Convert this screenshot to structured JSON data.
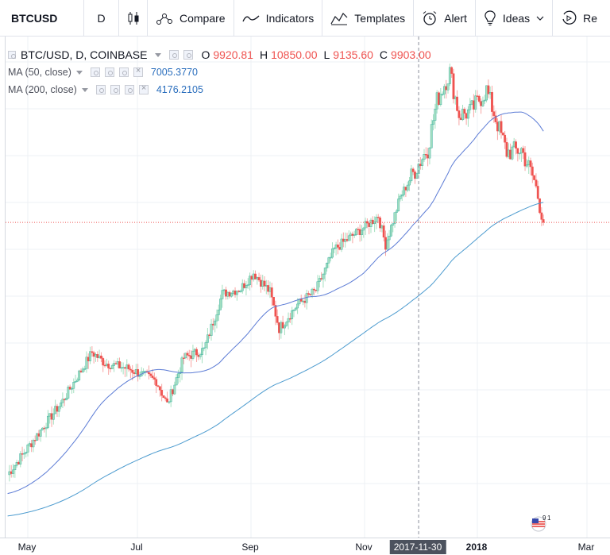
{
  "toolbar": {
    "symbol": "BTCUSD",
    "interval": "D",
    "compare": "Compare",
    "indicators": "Indicators",
    "templates": "Templates",
    "alert": "Alert",
    "ideas": "Ideas",
    "replay": "Re"
  },
  "legend": {
    "symbol": "BTC/USD, D, COINBASE",
    "o_key": "O",
    "o_val": "9920.81",
    "h_key": "H",
    "h_val": "10850.00",
    "l_key": "L",
    "l_val": "9135.60",
    "c_key": "C",
    "c_val": "9903.00",
    "ma50_label": "MA (50, close)",
    "ma50_val": "7005.3770",
    "ma200_label": "MA (200, close)",
    "ma200_val": "4176.2105"
  },
  "time_axis": {
    "labels": [
      "May",
      "Jul",
      "Sep",
      "Nov",
      "2018",
      "Mar"
    ],
    "cursor_date": "2017-11-30"
  },
  "colors": {
    "up": "#26a69a",
    "up_fill": "#a5e0c0",
    "down": "#ef5350",
    "ma50": "#5b7bd5",
    "ma200": "#4c9bcf",
    "last_price_line": "#ef5350"
  },
  "chart_data": {
    "type": "candlestick",
    "symbol": "BTC/USD",
    "exchange": "COINBASE",
    "interval": "D",
    "last": {
      "open": 9920.81,
      "high": 10850.0,
      "low": 9135.6,
      "close": 9903.0
    },
    "x": [
      "2017-04-20",
      "2017-05-05",
      "2017-05-20",
      "2017-06-05",
      "2017-06-12",
      "2017-06-25",
      "2017-07-10",
      "2017-07-16",
      "2017-07-25",
      "2017-08-05",
      "2017-08-15",
      "2017-08-25",
      "2017-09-01",
      "2017-09-10",
      "2017-09-15",
      "2017-09-25",
      "2017-10-05",
      "2017-10-15",
      "2017-10-20",
      "2017-11-01",
      "2017-11-08",
      "2017-11-12",
      "2017-11-20",
      "2017-11-28",
      "2017-12-05",
      "2017-12-10",
      "2017-12-17",
      "2017-12-22",
      "2017-12-28",
      "2018-01-06",
      "2018-01-12",
      "2018-01-17",
      "2018-01-25",
      "2018-02-01",
      "2018-02-06"
    ],
    "close": [
      1200,
      1550,
      2000,
      2800,
      2600,
      2500,
      2300,
      1950,
      2700,
      2850,
      4200,
      4350,
      4850,
      4250,
      3300,
      3900,
      4300,
      5700,
      6000,
      6700,
      7200,
      5900,
      8200,
      9900,
      11500,
      16000,
      19500,
      14500,
      14800,
      17200,
      13600,
      11200,
      11400,
      9200,
      7000
    ],
    "ma50": {
      "name": "MA (50, close)",
      "last": 7005.377
    },
    "ma200": {
      "name": "MA (200, close)",
      "last": 4176.2105
    },
    "x_ticks": [
      "May",
      "Jul",
      "Sep",
      "Nov",
      "2018",
      "Mar"
    ],
    "crosshair_date": "2017-11-30"
  }
}
